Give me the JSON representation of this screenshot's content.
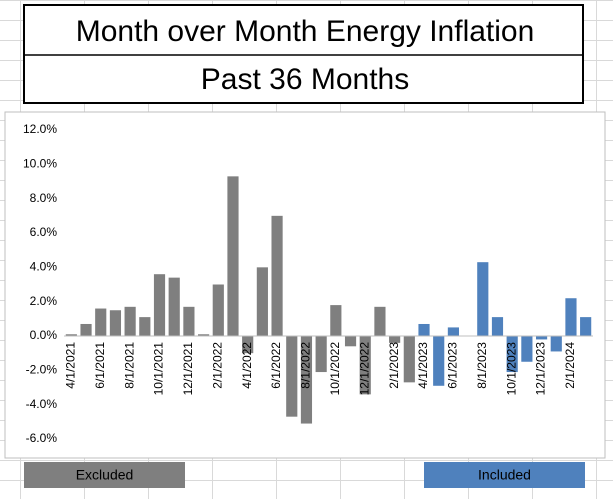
{
  "chart_data": {
    "type": "bar",
    "title": "Month over Month Energy Inflation",
    "subtitle": "Past 36 Months",
    "categories": [
      "4/1/2021",
      null,
      "6/1/2021",
      null,
      "8/1/2021",
      null,
      "10/1/2021",
      null,
      "12/1/2021",
      null,
      "2/1/2022",
      null,
      "4/1/2022",
      null,
      "6/1/2022",
      null,
      "8/1/2022",
      null,
      "10/1/2022",
      null,
      "12/1/2022",
      null,
      "2/1/2023",
      null,
      "4/1/2023",
      null,
      "6/1/2023",
      null,
      "8/1/2023",
      null,
      "10/1/2023",
      null,
      "12/1/2023",
      null,
      "2/1/2024",
      null
    ],
    "series": [
      {
        "name": "Excluded",
        "color": "#7f7f7f",
        "values": [
          0.1,
          0.7,
          1.6,
          1.5,
          1.7,
          1.1,
          3.6,
          3.4,
          1.7,
          0.1,
          3.0,
          9.3,
          -1.0,
          4.0,
          7.0,
          -4.7,
          -5.1,
          -2.1,
          1.8,
          -0.6,
          -3.4,
          1.7,
          -0.4,
          -2.7,
          null,
          null,
          null,
          null,
          null,
          null,
          null,
          null,
          null,
          null,
          null,
          null
        ]
      },
      {
        "name": "Included",
        "color": "#4f81bd",
        "values": [
          null,
          null,
          null,
          null,
          null,
          null,
          null,
          null,
          null,
          null,
          null,
          null,
          null,
          null,
          null,
          null,
          null,
          null,
          null,
          null,
          null,
          null,
          null,
          null,
          0.7,
          -2.9,
          0.5,
          0.0,
          4.3,
          1.1,
          -2.1,
          -1.5,
          -0.2,
          -0.9,
          2.2,
          1.1
        ]
      }
    ],
    "ylim": [
      -6,
      12
    ],
    "yticks": [
      {
        "value": -6,
        "label": "-6.0%"
      },
      {
        "value": -4,
        "label": "-4.0%"
      },
      {
        "value": -2,
        "label": "-2.0%"
      },
      {
        "value": 0,
        "label": "0.0%"
      },
      {
        "value": 2,
        "label": "2.0%"
      },
      {
        "value": 4,
        "label": "4.0%"
      },
      {
        "value": 6,
        "label": "6.0%"
      },
      {
        "value": 8,
        "label": "8.0%"
      },
      {
        "value": 10,
        "label": "10.0%"
      },
      {
        "value": 12,
        "label": "12.0%"
      }
    ],
    "grid": false
  }
}
